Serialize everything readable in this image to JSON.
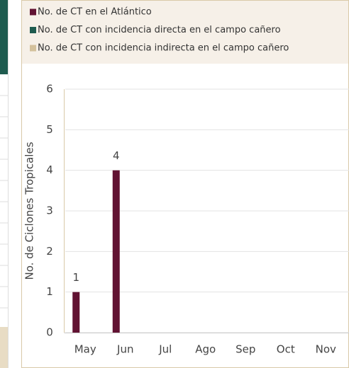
{
  "chart_data": {
    "type": "bar",
    "y_label": "No. de Ciclones Tropicales",
    "categories": [
      "May",
      "Jun",
      "Jul",
      "Ago",
      "Sep",
      "Oct",
      "Nov"
    ],
    "series": [
      {
        "name": "No. de CT en el Atlántico",
        "color": "#611232",
        "values": [
          1,
          4,
          0,
          0,
          0,
          0,
          0
        ]
      },
      {
        "name": "No. de CT con incidencia directa en el campo cañero",
        "color": "#1e5b4f",
        "values": [
          0,
          0,
          0,
          0,
          0,
          0,
          0
        ]
      },
      {
        "name": "No. de CT con incidencia indirecta en el campo cañero",
        "color": "#d4c19c",
        "values": [
          0,
          0,
          0,
          0,
          0,
          0,
          0
        ]
      }
    ],
    "ylim": [
      0,
      6
    ],
    "yticks": [
      0,
      1,
      2,
      3,
      4,
      5,
      6
    ],
    "grid": true
  }
}
